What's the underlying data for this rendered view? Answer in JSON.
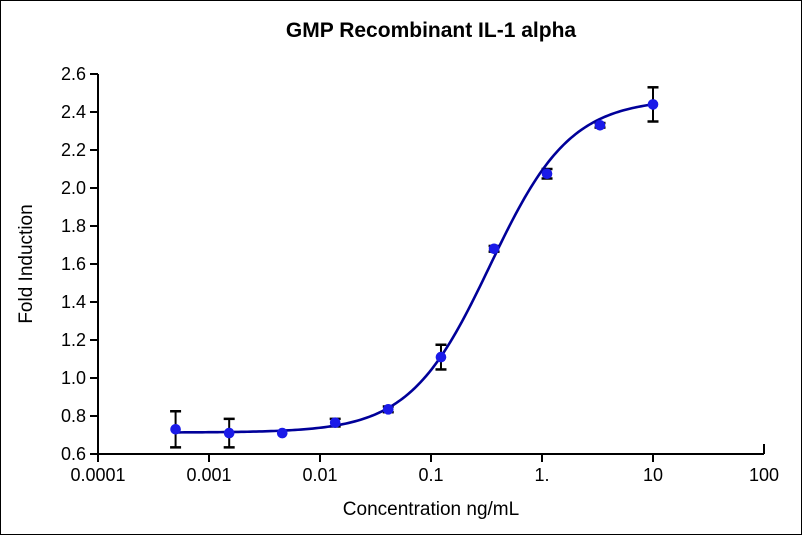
{
  "chart_data": {
    "type": "scatter",
    "title": "GMP Recombinant IL-1 alpha",
    "xlabel": "Concentration ng/mL",
    "ylabel": "Fold Induction",
    "x_scale": "log",
    "xlim": [
      0.0001,
      100
    ],
    "ylim": [
      0.6,
      2.6
    ],
    "grid": false,
    "legend": "none",
    "x_tick_values": [
      0.0001,
      0.001,
      0.01,
      0.1,
      1,
      10,
      100
    ],
    "x_tick_labels": [
      "0.0001",
      "0.001",
      "0.01",
      "0.1",
      "1.",
      "10",
      "100"
    ],
    "y_tick_values": [
      0.6,
      0.8,
      1.0,
      1.2,
      1.4,
      1.6,
      1.8,
      2.0,
      2.2,
      2.4,
      2.6
    ],
    "y_tick_labels": [
      "0.6",
      "0.8",
      "1.0",
      "1.2",
      "1.4",
      "1.6",
      "1.8",
      "2.0",
      "2.2",
      "2.4",
      "2.6"
    ],
    "series": [
      {
        "name": "GMP Recombinant IL-1 alpha",
        "marker": "circle",
        "points": [
          {
            "x": 0.0005,
            "y": 0.73,
            "err": 0.095
          },
          {
            "x": 0.00152,
            "y": 0.71,
            "err": 0.075
          },
          {
            "x": 0.00457,
            "y": 0.71,
            "err": 0
          },
          {
            "x": 0.0137,
            "y": 0.765,
            "err": 0.02
          },
          {
            "x": 0.0412,
            "y": 0.835,
            "err": 0.015
          },
          {
            "x": 0.123,
            "y": 1.11,
            "err": 0.065
          },
          {
            "x": 0.37,
            "y": 1.68,
            "err": 0.015
          },
          {
            "x": 1.11,
            "y": 2.075,
            "err": 0.025
          },
          {
            "x": 3.33,
            "y": 2.33,
            "err": 0.012
          },
          {
            "x": 10,
            "y": 2.44,
            "err": 0.09
          }
        ]
      }
    ],
    "fit_curve": {
      "model": "4PL",
      "bottom": 0.713,
      "top": 2.47,
      "ec50": 0.34,
      "hill": 1.2,
      "x_start": 0.0005,
      "x_end": 10
    },
    "colors": {
      "point": "#1a1ae8",
      "curve": "#000099",
      "error_bar": "#000000",
      "axis": "#000000",
      "background": "#ffffff"
    }
  }
}
